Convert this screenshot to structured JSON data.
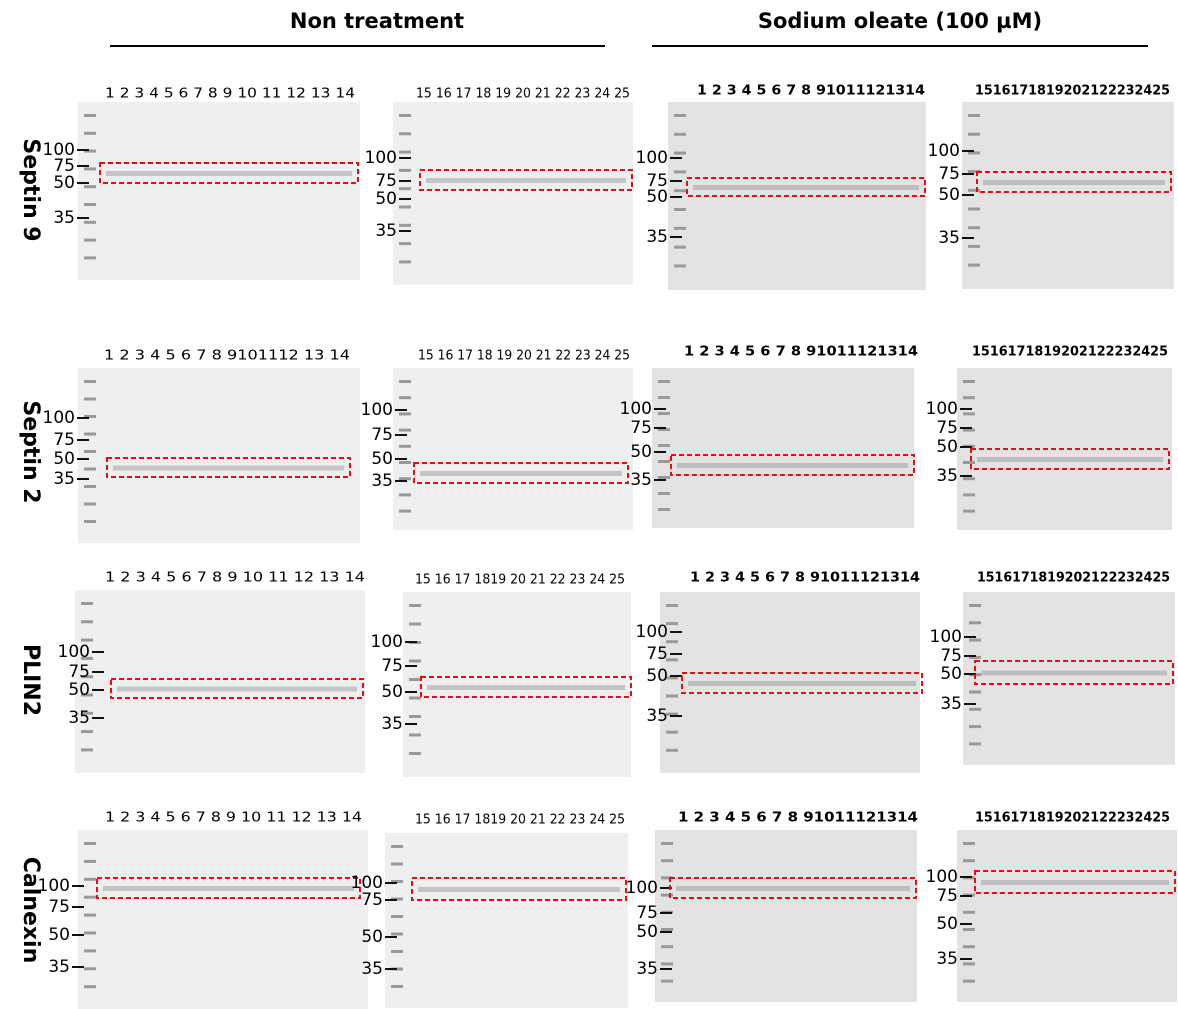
{
  "header": {
    "left": "Non treatment",
    "right": "Sodium oleate (100 µM)"
  },
  "rows": [
    {
      "label": "Septin 9",
      "panels": [
        {
          "lanes": "1 2 3 4 5 6 7 8 9 10 11 12 13 14",
          "markers": [
            100,
            75,
            50,
            35
          ]
        },
        {
          "lanes": "15 16 17 18 19 20 21 22 23 24 25",
          "markers": [
            100,
            75,
            50,
            35
          ]
        },
        {
          "lanes": "1 2 3 4 5 6 7 8 91011121314",
          "markers": [
            100,
            75,
            50,
            35
          ]
        },
        {
          "lanes": "1516171819202122232425",
          "markers": [
            100,
            75,
            50,
            35
          ]
        }
      ]
    },
    {
      "label": "Septin 2",
      "panels": [
        {
          "lanes": "1 2 3 4 5 6 7 8 9101112 13 14",
          "markers": [
            100,
            75,
            50,
            35
          ]
        },
        {
          "lanes": "15 16 17 18 19 20 21 22 23 24 25",
          "markers": [
            100,
            75,
            50,
            35
          ]
        },
        {
          "lanes": "1 2 3 4 5 6 7 8 91011121314",
          "markers": [
            100,
            75,
            50,
            35
          ]
        },
        {
          "lanes": "1516171819202122232425",
          "markers": [
            100,
            75,
            50,
            35
          ]
        }
      ]
    },
    {
      "label": "PLIN2",
      "panels": [
        {
          "lanes": "1 2 3 4 5 6 7 8 9 10 11 12 13 14",
          "markers": [
            100,
            75,
            50,
            35
          ]
        },
        {
          "lanes": "15 16 17 1819 20 21 22 23 24 25",
          "markers": [
            100,
            75,
            50,
            35
          ]
        },
        {
          "lanes": "1 2 3 4 5 6 7 8 91011121314",
          "markers": [
            100,
            75,
            50,
            35
          ]
        },
        {
          "lanes": "1516171819202122232425",
          "markers": [
            100,
            75,
            50,
            35
          ]
        }
      ]
    },
    {
      "label": "Calnexin",
      "panels": [
        {
          "lanes": "1 2 3 4 5 6 7 8 9 10 11 12 13 14",
          "markers": [
            100,
            75,
            50,
            35
          ]
        },
        {
          "lanes": "15 16 17 1819 20 21 22 23 24 25",
          "markers": [
            100,
            75,
            50,
            35
          ]
        },
        {
          "lanes": "1 2 3 4 5 6 7 8 91011121314",
          "markers": [
            100,
            75,
            50,
            35
          ]
        },
        {
          "lanes": "1516171819202122232425",
          "markers": [
            100,
            75,
            50,
            35
          ]
        }
      ]
    }
  ]
}
